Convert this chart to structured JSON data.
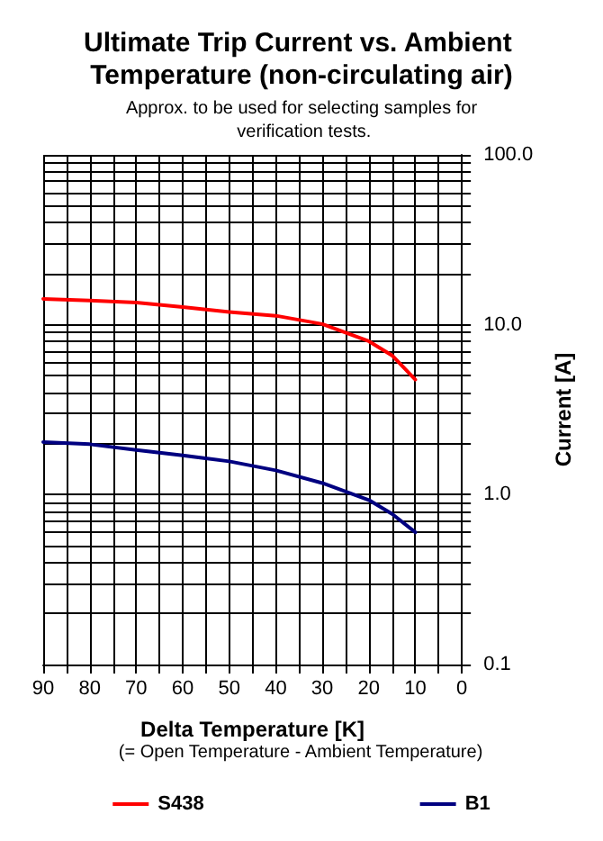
{
  "chart_data": {
    "type": "line",
    "title": "Ultimate Trip Current vs. Ambient Temperature (non-circulating air)",
    "subtitle": "Approx. to be used for selecting samples for verification tests.",
    "xlabel": "Delta Temperature [K]",
    "ylabel": "Current [A]",
    "annotations": [
      "(= Open Temperature - Ambient Temperature)"
    ],
    "x": [
      90,
      80,
      70,
      60,
      50,
      40,
      30,
      20,
      15,
      10
    ],
    "series": [
      {
        "name": "S438",
        "color": "#ff0000",
        "values": [
          14.2,
          13.9,
          13.5,
          12.7,
          11.9,
          11.3,
          10.1,
          8.0,
          6.6,
          4.75
        ]
      },
      {
        "name": "B1",
        "color": "#000080",
        "values": [
          2.04,
          1.98,
          1.83,
          1.7,
          1.57,
          1.39,
          1.17,
          0.93,
          0.77,
          0.6
        ]
      }
    ],
    "xlim": [
      90,
      0
    ],
    "xticks": [
      90,
      {
        "value": 85,
        "label": null
      },
      80,
      {
        "value": 75,
        "label": null
      },
      70,
      {
        "value": 65,
        "label": null
      },
      60,
      {
        "value": 55,
        "label": null
      },
      50,
      {
        "value": 45,
        "label": null
      },
      40,
      {
        "value": 35,
        "label": null
      },
      30,
      {
        "value": 25,
        "label": null
      },
      20,
      {
        "value": 15,
        "label": null
      },
      10,
      {
        "value": 5,
        "label": null
      },
      0
    ],
    "ylim": [
      0.1,
      100
    ],
    "yticks": [
      {
        "value": 0.1,
        "label": "0.1"
      },
      {
        "value": 0.2,
        "label": null
      },
      {
        "value": 0.3,
        "label": null
      },
      {
        "value": 0.4,
        "label": null
      },
      {
        "value": 0.5,
        "label": null
      },
      {
        "value": 0.6,
        "label": null
      },
      {
        "value": 0.7,
        "label": null
      },
      {
        "value": 0.8,
        "label": null
      },
      {
        "value": 0.9,
        "label": null
      },
      {
        "value": 1,
        "label": "1.0"
      },
      {
        "value": 2,
        "label": null
      },
      {
        "value": 3,
        "label": null
      },
      {
        "value": 4,
        "label": null
      },
      {
        "value": 5,
        "label": null
      },
      {
        "value": 6,
        "label": null
      },
      {
        "value": 7,
        "label": null
      },
      {
        "value": 8,
        "label": null
      },
      {
        "value": 9,
        "label": null
      },
      {
        "value": 10,
        "label": "10.0"
      },
      {
        "value": 20,
        "label": null
      },
      {
        "value": 30,
        "label": null
      },
      {
        "value": 40,
        "label": null
      },
      {
        "value": 50,
        "label": null
      },
      {
        "value": 60,
        "label": null
      },
      {
        "value": 70,
        "label": null
      },
      {
        "value": 80,
        "label": null
      },
      {
        "value": 90,
        "label": null
      },
      {
        "value": 100,
        "label": "100.0"
      }
    ],
    "log": true,
    "grid": true,
    "legend": "bottom",
    "marker": "none",
    "line_style": "solid"
  }
}
